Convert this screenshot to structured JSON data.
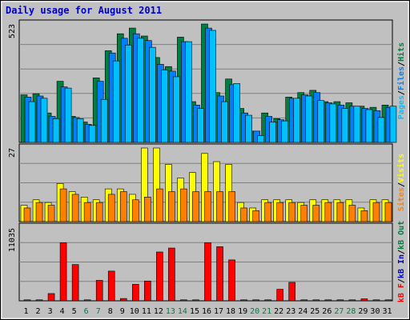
{
  "chart_data": [
    {
      "type": "bar",
      "panel": "hits-files-pages",
      "title": "Daily usage for August 2011",
      "ymax_label": "523",
      "ylim": [
        0,
        523
      ],
      "categories": [
        "1",
        "2",
        "3",
        "4",
        "5",
        "6",
        "7",
        "8",
        "9",
        "10",
        "11",
        "12",
        "13",
        "14",
        "15",
        "16",
        "17",
        "18",
        "19",
        "20",
        "21",
        "22",
        "23",
        "24",
        "25",
        "26",
        "27",
        "28",
        "29",
        "30",
        "31"
      ],
      "series": [
        {
          "name": "Hits",
          "color": "#008040",
          "values": [
            210,
            215,
            130,
            270,
            115,
            90,
            285,
            405,
            480,
            505,
            470,
            375,
            335,
            465,
            180,
            525,
            220,
            280,
            150,
            50,
            130,
            105,
            200,
            220,
            230,
            180,
            180,
            175,
            160,
            155,
            165
          ]
        },
        {
          "name": "Files",
          "color": "#0080ff",
          "values": [
            200,
            205,
            115,
            245,
            110,
            80,
            270,
            395,
            460,
            480,
            450,
            345,
            315,
            445,
            165,
            505,
            205,
            255,
            130,
            50,
            115,
            100,
            195,
            210,
            220,
            175,
            165,
            160,
            150,
            140,
            155
          ]
        },
        {
          "name": "Pages",
          "color": "#00c0ff",
          "values": [
            180,
            195,
            105,
            240,
            105,
            75,
            190,
            360,
            430,
            460,
            420,
            320,
            290,
            445,
            150,
            495,
            180,
            260,
            120,
            30,
            90,
            95,
            195,
            205,
            185,
            170,
            150,
            160,
            145,
            110,
            160
          ]
        }
      ],
      "right_labels": [
        "Pages",
        "/",
        "Files",
        "/",
        "Hits"
      ],
      "right_colors": [
        "#00c0ff",
        "#000000",
        "#0080ff",
        "#000000",
        "#008040"
      ],
      "grid": true
    },
    {
      "type": "bar",
      "panel": "visits-sites",
      "ymax_label": "27",
      "ylim": [
        0,
        27
      ],
      "series": [
        {
          "name": "Visits",
          "color": "#ffff00",
          "values": [
            6,
            8,
            7,
            14,
            11,
            9,
            8,
            12,
            12,
            10,
            27,
            27,
            21,
            16,
            18,
            25,
            22,
            21,
            7,
            5,
            8,
            8,
            8,
            7,
            8,
            8,
            8,
            8,
            5,
            8,
            8
          ]
        },
        {
          "name": "Sites",
          "color": "#ff8000",
          "values": [
            5,
            7,
            6,
            12,
            10,
            7,
            7,
            10,
            11,
            8,
            9,
            12,
            11,
            12,
            11,
            11,
            11,
            11,
            5,
            4,
            7,
            7,
            7,
            6,
            6,
            7,
            7,
            6,
            4,
            7,
            7
          ]
        }
      ],
      "right_labels": [
        "Sites",
        "/",
        "Visits"
      ],
      "right_colors": [
        "#ff8000",
        "#000000",
        "#ffff00"
      ],
      "grid": true
    },
    {
      "type": "bar",
      "panel": "kbytes",
      "ymax_label": "11035",
      "ylim": [
        0,
        11035
      ],
      "series": [
        {
          "name": "kB F",
          "color": "#ff0000",
          "values": [
            150,
            150,
            1100,
            8800,
            5500,
            150,
            3100,
            4500,
            350,
            2500,
            3000,
            7400,
            8000,
            150,
            150,
            8800,
            8200,
            6200,
            150,
            150,
            150,
            1750,
            2800,
            150,
            150,
            150,
            150,
            150,
            300,
            150,
            150
          ]
        }
      ],
      "right_labels": [
        "kB F",
        "/",
        "kB In",
        "/",
        "kB Out"
      ],
      "right_colors": [
        "#ff0000",
        "#000000",
        "#0000cc",
        "#000000",
        "#008040"
      ],
      "grid": true
    }
  ],
  "x_label_colors": {
    "weekday": "#000000",
    "weekend": "#008040"
  },
  "weekend_days": [
    6,
    7,
    13,
    14,
    20,
    21,
    27,
    28
  ]
}
